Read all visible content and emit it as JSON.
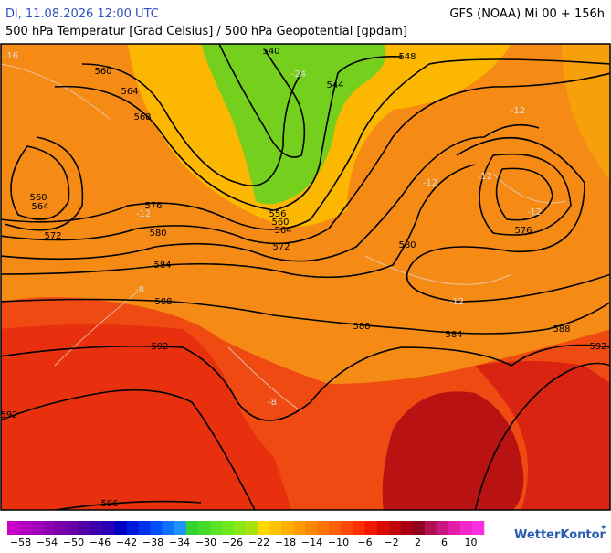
{
  "header": {
    "valid_time": "Di, 11.08.2026 12:00 UTC",
    "model_run": "GFS (NOAA) Mi 00 + 156h",
    "subtitle": "500 hPa Temperatur [Grad Celsius] / 500 hPa Geopotential [gpdam]"
  },
  "map": {
    "geopotential_labels": [
      "540",
      "548",
      "544",
      "560",
      "564",
      "568",
      "560",
      "564",
      "572",
      "576",
      "580",
      "584",
      "588",
      "592",
      "592",
      "596",
      "556",
      "560",
      "564",
      "572",
      "580",
      "576",
      "588",
      "584",
      "588",
      "592"
    ],
    "temperature_labels": [
      "-16",
      "-24",
      "-12",
      "-12",
      "-12",
      "-12",
      "-12",
      "-8",
      "-8",
      "-12"
    ]
  },
  "colorbar": {
    "labels": [
      "−58",
      "−54",
      "−50",
      "−46",
      "−42",
      "−38",
      "−34",
      "−30",
      "−26",
      "−22",
      "−18",
      "−14",
      "−10",
      "−6",
      "−2",
      "2",
      "6",
      "10"
    ],
    "colors": [
      "#c800c8",
      "#b400c0",
      "#a000b8",
      "#8c00b0",
      "#7800a8",
      "#6400a8",
      "#5000a8",
      "#3c00b0",
      "#2800b8",
      "#0000c0",
      "#0018d8",
      "#0030f0",
      "#0050ff",
      "#1070ff",
      "#2090ff",
      "#34d234",
      "#44dc2c",
      "#58e424",
      "#70e81c",
      "#8ce814",
      "#a8e010",
      "#ffd800",
      "#ffc400",
      "#ffb000",
      "#ff9c00",
      "#ff8800",
      "#ff7400",
      "#ff6000",
      "#ff4800",
      "#ff3000",
      "#f01800",
      "#d80c00",
      "#c00808",
      "#a80010",
      "#900020",
      "#b01050",
      "#c81880",
      "#e020a8",
      "#f028c8",
      "#ff30e0"
    ],
    "brand": "WetterKontor"
  }
}
